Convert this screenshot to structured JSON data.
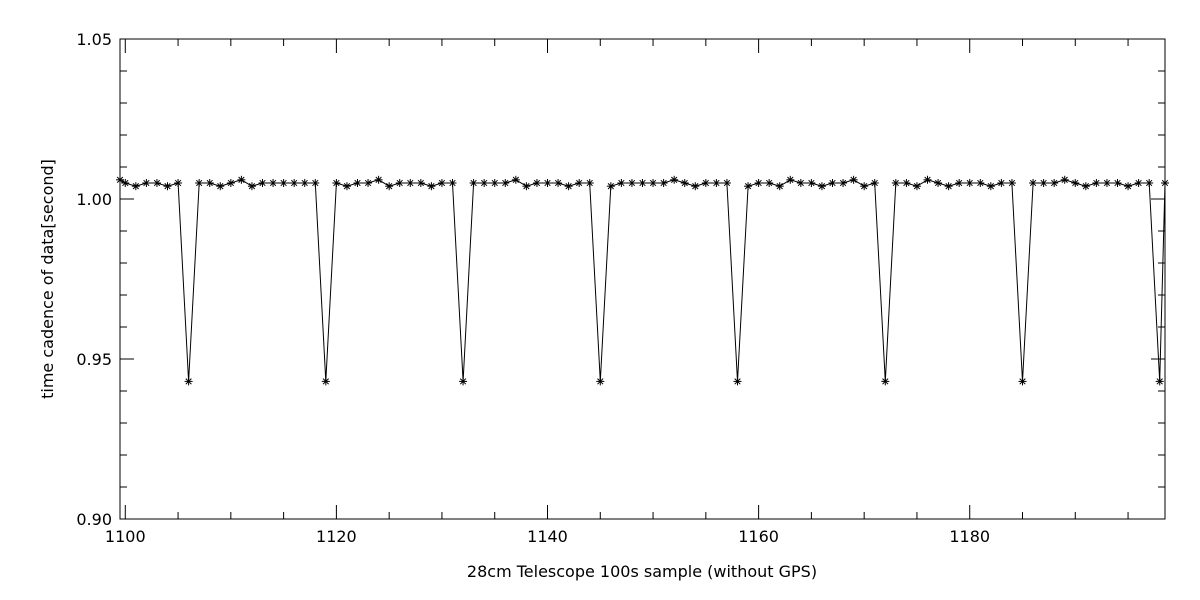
{
  "chart_data": {
    "type": "line",
    "title": "",
    "xlabel": "28cm Telescope 100s sample (without GPS)",
    "ylabel": "time cadence of data[second]",
    "xlim": [
      1099.5,
      1198.5
    ],
    "ylim": [
      0.9,
      1.05
    ],
    "x_ticks": [
      "1100",
      "1120",
      "1140",
      "1160",
      "1180"
    ],
    "y_ticks": [
      "0.90",
      "0.95",
      "1.00",
      "1.05"
    ],
    "grid": false,
    "marker": "asterisk",
    "line_color": "#000000",
    "series": [
      {
        "x": [
          1099.5,
          1100,
          1101,
          1102,
          1103,
          1104,
          1105,
          1106,
          1107,
          1108,
          1109,
          1110,
          1111,
          1112,
          1113,
          1114,
          1115,
          1116,
          1117,
          1118,
          1119,
          1120,
          1121,
          1122,
          1123,
          1124,
          1125,
          1126,
          1127,
          1128,
          1129,
          1130,
          1131,
          1132,
          1133,
          1134,
          1135,
          1136,
          1137,
          1138,
          1139,
          1140,
          1141,
          1142,
          1143,
          1144,
          1145,
          1146,
          1147,
          1148,
          1149,
          1150,
          1151,
          1152,
          1153,
          1154,
          1155,
          1156,
          1157,
          1158,
          1159,
          1160,
          1161,
          1162,
          1163,
          1164,
          1165,
          1166,
          1167,
          1168,
          1169,
          1170,
          1171,
          1172,
          1173,
          1174,
          1175,
          1176,
          1177,
          1178,
          1179,
          1180,
          1181,
          1182,
          1183,
          1184,
          1185,
          1186,
          1187,
          1188,
          1189,
          1190,
          1191,
          1192,
          1193,
          1194,
          1195,
          1196,
          1197,
          1198,
          1198.5
        ],
        "y": [
          1.006,
          1.005,
          1.004,
          1.005,
          1.005,
          1.004,
          1.005,
          0.943,
          1.005,
          1.005,
          1.004,
          1.005,
          1.006,
          1.004,
          1.005,
          1.005,
          1.005,
          1.005,
          1.005,
          1.005,
          0.943,
          1.005,
          1.004,
          1.005,
          1.005,
          1.006,
          1.004,
          1.005,
          1.005,
          1.005,
          1.004,
          1.005,
          1.005,
          0.943,
          1.005,
          1.005,
          1.005,
          1.005,
          1.006,
          1.004,
          1.005,
          1.005,
          1.005,
          1.004,
          1.005,
          1.005,
          0.943,
          1.004,
          1.005,
          1.005,
          1.005,
          1.005,
          1.005,
          1.006,
          1.005,
          1.004,
          1.005,
          1.005,
          1.005,
          0.943,
          1.004,
          1.005,
          1.005,
          1.004,
          1.006,
          1.005,
          1.005,
          1.004,
          1.005,
          1.005,
          1.006,
          1.004,
          1.005,
          0.943,
          1.005,
          1.005,
          1.004,
          1.006,
          1.005,
          1.004,
          1.005,
          1.005,
          1.005,
          1.004,
          1.005,
          1.005,
          0.943,
          1.005,
          1.005,
          1.005,
          1.006,
          1.005,
          1.004,
          1.005,
          1.005,
          1.005,
          1.004,
          1.005,
          1.005,
          0.943,
          1.005
        ]
      }
    ]
  }
}
